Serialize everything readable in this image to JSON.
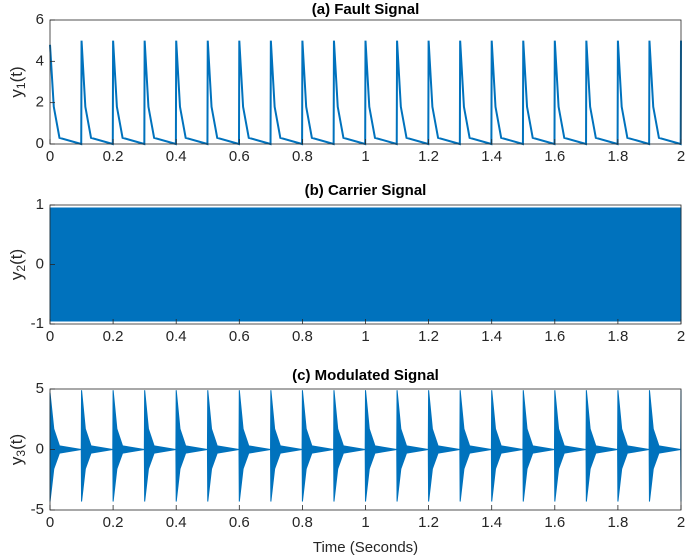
{
  "chart_data": [
    {
      "type": "line",
      "title": "(a) Fault Signal",
      "ylabel": {
        "base": "y",
        "sub": "1",
        "rest": "(t)"
      },
      "color": "#0072bd",
      "x": [
        0,
        0.012,
        0.03,
        0.099,
        0.1,
        0.112,
        0.13,
        0.199,
        0.2,
        0.212,
        0.23,
        0.299,
        0.3,
        0.312,
        0.33,
        0.399,
        0.4,
        0.412,
        0.43,
        0.499,
        0.5,
        0.512,
        0.53,
        0.599,
        0.6,
        0.612,
        0.63,
        0.699,
        0.7,
        0.712,
        0.73,
        0.799,
        0.8,
        0.812,
        0.83,
        0.899,
        0.9,
        0.912,
        0.93,
        0.999,
        1,
        1.012,
        1.03,
        1.099,
        1.1,
        1.112,
        1.13,
        1.199,
        1.2,
        1.212,
        1.23,
        1.299,
        1.3,
        1.312,
        1.33,
        1.399,
        1.4,
        1.412,
        1.43,
        1.499,
        1.5,
        1.512,
        1.53,
        1.599,
        1.6,
        1.612,
        1.63,
        1.699,
        1.7,
        1.712,
        1.73,
        1.799,
        1.8,
        1.812,
        1.83,
        1.899,
        1.9,
        1.912,
        1.93,
        1.999,
        2
      ],
      "values": [
        4.8,
        1.8,
        0.3,
        0,
        5,
        1.8,
        0.3,
        0,
        5,
        1.8,
        0.3,
        0,
        5,
        1.8,
        0.3,
        0,
        5,
        1.8,
        0.3,
        0,
        5,
        1.8,
        0.3,
        0,
        5,
        1.8,
        0.3,
        0,
        5,
        1.8,
        0.3,
        0,
        5,
        1.8,
        0.3,
        0,
        5,
        1.8,
        0.3,
        0,
        5,
        1.8,
        0.3,
        0,
        5,
        1.8,
        0.3,
        0,
        5,
        1.8,
        0.3,
        0,
        5,
        1.8,
        0.3,
        0,
        5,
        1.8,
        0.3,
        0,
        5,
        1.8,
        0.3,
        0,
        5,
        1.8,
        0.3,
        0,
        5,
        1.8,
        0.3,
        0,
        5,
        1.8,
        0.3,
        0,
        5,
        1.8,
        0.3,
        0,
        5
      ],
      "xlim": [
        0,
        2
      ],
      "xticks": [
        0,
        0.2,
        0.4,
        0.6,
        0.8,
        1,
        1.2,
        1.4,
        1.6,
        1.8,
        2
      ],
      "ylim": [
        0,
        6
      ],
      "yticks": [
        0,
        2,
        4,
        6
      ]
    },
    {
      "type": "area",
      "title": "(b) Carrier Signal",
      "ylabel": {
        "base": "y",
        "sub": "2",
        "rest": "(t)"
      },
      "color": "#0072bd",
      "x": [
        0,
        2
      ],
      "upper": [
        0.95,
        0.95
      ],
      "lower": [
        -0.95,
        -0.95
      ],
      "xlim": [
        0,
        2
      ],
      "xticks": [
        0,
        0.2,
        0.4,
        0.6,
        0.8,
        1,
        1.2,
        1.4,
        1.6,
        1.8,
        2
      ],
      "ylim": [
        -1,
        1
      ],
      "yticks": [
        -1,
        0,
        1
      ]
    },
    {
      "type": "area",
      "title": "(c) Modulated Signal",
      "ylabel": {
        "base": "y",
        "sub": "3",
        "rest": "(t)"
      },
      "color": "#0072bd",
      "x": [
        0,
        0.012,
        0.03,
        0.099,
        0.1,
        0.112,
        0.13,
        0.199,
        0.2,
        0.212,
        0.23,
        0.299,
        0.3,
        0.312,
        0.33,
        0.399,
        0.4,
        0.412,
        0.43,
        0.499,
        0.5,
        0.512,
        0.53,
        0.599,
        0.6,
        0.612,
        0.63,
        0.699,
        0.7,
        0.712,
        0.73,
        0.799,
        0.8,
        0.812,
        0.83,
        0.899,
        0.9,
        0.912,
        0.93,
        0.999,
        1,
        1.012,
        1.03,
        1.099,
        1.1,
        1.112,
        1.13,
        1.199,
        1.2,
        1.212,
        1.23,
        1.299,
        1.3,
        1.312,
        1.33,
        1.399,
        1.4,
        1.412,
        1.43,
        1.499,
        1.5,
        1.512,
        1.53,
        1.599,
        1.6,
        1.612,
        1.63,
        1.699,
        1.7,
        1.712,
        1.73,
        1.799,
        1.8,
        1.812,
        1.83,
        1.899,
        1.9,
        1.912,
        1.93,
        1.999,
        2
      ],
      "upper": [
        4.7,
        1.7,
        0.3,
        0,
        4.9,
        1.7,
        0.3,
        0,
        4.9,
        1.7,
        0.3,
        0,
        4.9,
        1.7,
        0.3,
        0,
        4.9,
        1.7,
        0.3,
        0,
        4.9,
        1.7,
        0.3,
        0,
        4.9,
        1.7,
        0.3,
        0,
        4.9,
        1.7,
        0.3,
        0,
        4.9,
        1.7,
        0.3,
        0,
        4.9,
        1.7,
        0.3,
        0,
        4.9,
        1.7,
        0.3,
        0,
        4.9,
        1.7,
        0.3,
        0,
        4.9,
        1.7,
        0.3,
        0,
        4.9,
        1.7,
        0.3,
        0,
        4.9,
        1.7,
        0.3,
        0,
        4.9,
        1.7,
        0.3,
        0,
        4.9,
        1.7,
        0.3,
        0,
        4.9,
        1.7,
        0.3,
        0,
        4.9,
        1.7,
        0.3,
        0,
        4.9,
        1.7,
        0.3,
        0,
        4.9
      ],
      "lower": [
        -4.3,
        -1.6,
        -0.3,
        0,
        -4.3,
        -1.6,
        -0.3,
        0,
        -4.3,
        -1.6,
        -0.3,
        0,
        -4.3,
        -1.6,
        -0.3,
        0,
        -4.3,
        -1.6,
        -0.3,
        0,
        -4.3,
        -1.6,
        -0.3,
        0,
        -4.3,
        -1.6,
        -0.3,
        0,
        -4.3,
        -1.6,
        -0.3,
        0,
        -4.3,
        -1.6,
        -0.3,
        0,
        -4.3,
        -1.6,
        -0.3,
        0,
        -4.3,
        -1.6,
        -0.3,
        0,
        -4.3,
        -1.6,
        -0.3,
        0,
        -4.3,
        -1.6,
        -0.3,
        0,
        -4.3,
        -1.6,
        -0.3,
        0,
        -4.3,
        -1.6,
        -0.3,
        0,
        -4.3,
        -1.6,
        -0.3,
        0,
        -4.3,
        -1.6,
        -0.3,
        0,
        -4.3,
        -1.6,
        -0.3,
        0,
        -4.3,
        -1.6,
        -0.3,
        0,
        -4.3,
        -1.6,
        -0.3,
        0,
        -4.3
      ],
      "xlabel": "Time (Seconds)",
      "xlim": [
        0,
        2
      ],
      "xticks": [
        0,
        0.2,
        0.4,
        0.6,
        0.8,
        1,
        1.2,
        1.4,
        1.6,
        1.8,
        2
      ],
      "ylim": [
        -5,
        5
      ],
      "yticks": [
        -5,
        0,
        5
      ]
    }
  ]
}
